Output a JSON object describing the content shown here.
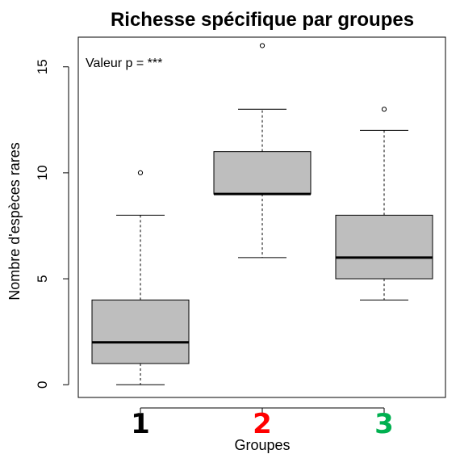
{
  "chart_data": {
    "type": "boxplot",
    "title": "Richesse spécifique par groupes",
    "xlabel": "Groupes",
    "ylabel": "Nombre d'espèces rares",
    "annotation": "Valeur p = ***",
    "ylim": [
      -0.6,
      16.4
    ],
    "yticks": [
      0,
      5,
      10,
      15
    ],
    "grid": false,
    "box_color": "#bebebe",
    "groups": [
      {
        "label": "1",
        "label_color": "#000000",
        "min": 0,
        "q1": 1,
        "median": 2,
        "q3": 4,
        "max": 8,
        "outliers": [
          10
        ]
      },
      {
        "label": "2",
        "label_color": "#ff0000",
        "min": 6,
        "q1": 9,
        "median": 9,
        "q3": 11,
        "max": 13,
        "outliers": [
          16
        ]
      },
      {
        "label": "3",
        "label_color": "#00b050",
        "min": 4,
        "q1": 5,
        "median": 6,
        "q3": 8,
        "max": 12,
        "outliers": [
          13
        ]
      }
    ]
  }
}
